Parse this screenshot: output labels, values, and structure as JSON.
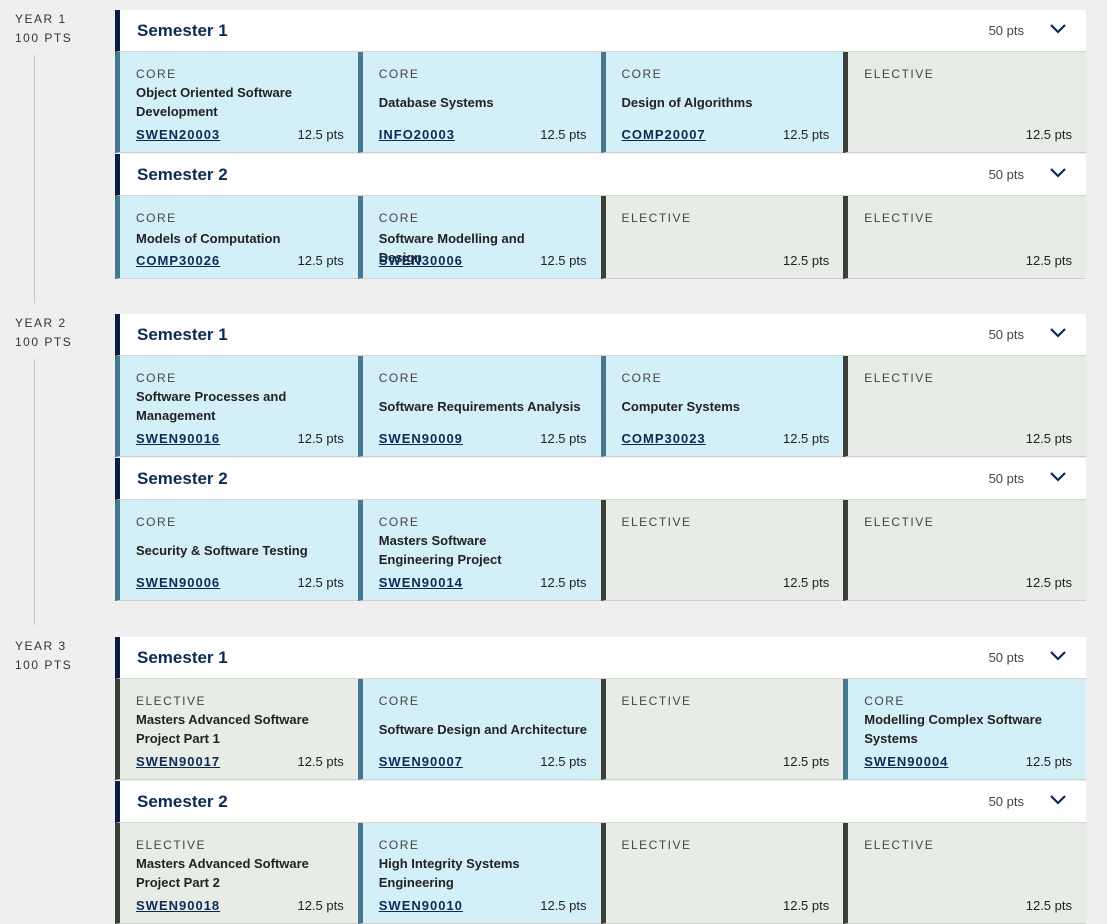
{
  "years": [
    {
      "label": "YEAR 1",
      "pts": "100 PTS",
      "semesters": [
        {
          "title": "Semester 1",
          "pts": "50 pts",
          "subjects": [
            {
              "type": "CORE",
              "name": "Object Oriented Software Development",
              "code": "SWEN20003",
              "pts": "12.5 pts"
            },
            {
              "type": "CORE",
              "name": "Database Systems",
              "code": "INFO20003",
              "pts": "12.5 pts"
            },
            {
              "type": "CORE",
              "name": "Design of Algorithms",
              "code": "COMP20007",
              "pts": "12.5 pts"
            },
            {
              "type": "ELECTIVE",
              "name": "",
              "code": "",
              "pts": "12.5 pts"
            }
          ]
        },
        {
          "title": "Semester 2",
          "pts": "50 pts",
          "subjects": [
            {
              "type": "CORE",
              "name": "Models of Computation",
              "code": "COMP30026",
              "pts": "12.5 pts"
            },
            {
              "type": "CORE",
              "name": "Software Modelling and Design",
              "code": "SWEN30006",
              "pts": "12.5 pts"
            },
            {
              "type": "ELECTIVE",
              "name": "",
              "code": "",
              "pts": "12.5 pts"
            },
            {
              "type": "ELECTIVE",
              "name": "",
              "code": "",
              "pts": "12.5 pts"
            }
          ]
        }
      ]
    },
    {
      "label": "YEAR 2",
      "pts": "100 PTS",
      "semesters": [
        {
          "title": "Semester 1",
          "pts": "50 pts",
          "subjects": [
            {
              "type": "CORE",
              "name": "Software Processes and Management",
              "code": "SWEN90016",
              "pts": "12.5 pts"
            },
            {
              "type": "CORE",
              "name": "Software Requirements Analysis",
              "code": "SWEN90009",
              "pts": "12.5 pts"
            },
            {
              "type": "CORE",
              "name": "Computer Systems",
              "code": "COMP30023",
              "pts": "12.5 pts"
            },
            {
              "type": "ELECTIVE",
              "name": "",
              "code": "",
              "pts": "12.5 pts"
            }
          ]
        },
        {
          "title": "Semester 2",
          "pts": "50 pts",
          "subjects": [
            {
              "type": "CORE",
              "name": "Security & Software Testing",
              "code": "SWEN90006",
              "pts": "12.5 pts"
            },
            {
              "type": "CORE",
              "name": "Masters Software Engineering Project",
              "code": "SWEN90014",
              "pts": "12.5 pts"
            },
            {
              "type": "ELECTIVE",
              "name": "",
              "code": "",
              "pts": "12.5 pts"
            },
            {
              "type": "ELECTIVE",
              "name": "",
              "code": "",
              "pts": "12.5 pts"
            }
          ]
        }
      ]
    },
    {
      "label": "YEAR 3",
      "pts": "100 PTS",
      "semesters": [
        {
          "title": "Semester 1",
          "pts": "50 pts",
          "subjects": [
            {
              "type": "ELECTIVE",
              "name": "Masters Advanced Software Project Part 1",
              "code": "SWEN90017",
              "pts": "12.5 pts"
            },
            {
              "type": "CORE",
              "name": "Software Design and Architecture",
              "code": "SWEN90007",
              "pts": "12.5 pts"
            },
            {
              "type": "ELECTIVE",
              "name": "",
              "code": "",
              "pts": "12.5 pts"
            },
            {
              "type": "CORE",
              "name": "Modelling Complex Software Systems",
              "code": "SWEN90004",
              "pts": "12.5 pts"
            }
          ]
        },
        {
          "title": "Semester 2",
          "pts": "50 pts",
          "subjects": [
            {
              "type": "ELECTIVE",
              "name": "Masters Advanced Software Project Part 2",
              "code": "SWEN90018",
              "pts": "12.5 pts"
            },
            {
              "type": "CORE",
              "name": "High Integrity Systems Engineering",
              "code": "SWEN90010",
              "pts": "12.5 pts"
            },
            {
              "type": "ELECTIVE",
              "name": "",
              "code": "",
              "pts": "12.5 pts"
            },
            {
              "type": "ELECTIVE",
              "name": "",
              "code": "",
              "pts": "12.5 pts"
            }
          ]
        }
      ]
    }
  ],
  "icons": {
    "expand": "chevron-down-icon"
  },
  "colors": {
    "core_bg": "#d3eff7",
    "elective_bg": "#e8ece7",
    "header_accent": "#0d1d44"
  }
}
